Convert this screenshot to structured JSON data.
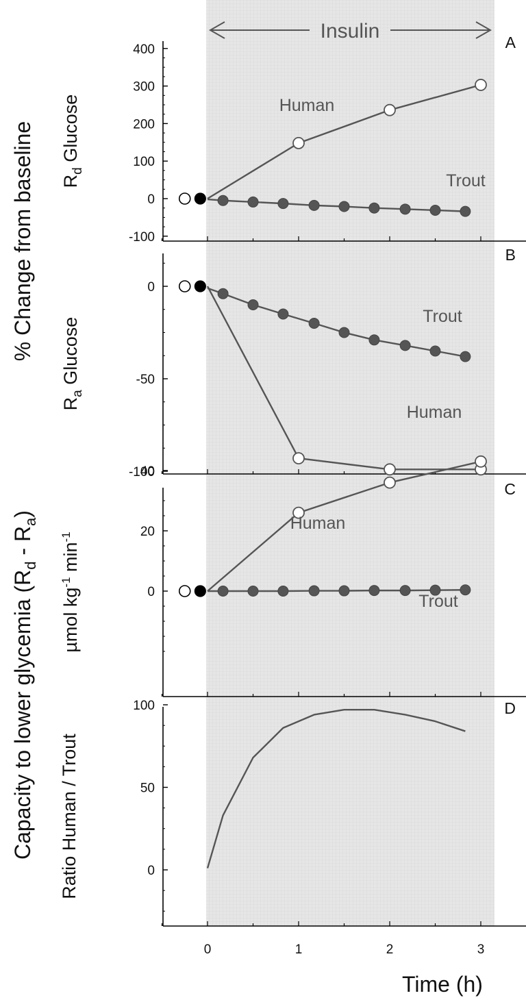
{
  "figure": {
    "insulin_label": "Insulin",
    "left_title": "% Change from baseline",
    "left_title_bottom": "Capacity to lower glycemia (R",
    "x_title": "Time (h)",
    "x_ticks": [
      0,
      1,
      2,
      3
    ],
    "colors": {
      "shade": "#e3e3e3",
      "line": "#555555",
      "trout_marker": "#555555",
      "baseline_filled": "#000000"
    }
  },
  "chart_data": [
    {
      "panel": "A",
      "type": "line",
      "ylabel": "Rd Glucose",
      "ylim": [
        -120,
        420
      ],
      "yticks": [
        -100,
        0,
        100,
        200,
        300,
        400
      ],
      "baseline": {
        "human": [
          -0.25,
          0
        ],
        "trout": [
          -0.08,
          0
        ]
      },
      "series": [
        {
          "name": "Human",
          "x": [
            0,
            1,
            2,
            3
          ],
          "y": [
            0,
            148,
            236,
            303
          ]
        },
        {
          "name": "Trout",
          "x": [
            0,
            0.17,
            0.5,
            0.83,
            1.17,
            1.5,
            1.83,
            2.17,
            2.5,
            2.83
          ],
          "y": [
            -2,
            -5,
            -9,
            -13,
            -18,
            -21,
            -25,
            -28,
            -31,
            -34
          ]
        }
      ]
    },
    {
      "panel": "B",
      "type": "line",
      "ylabel": "Ra Glucose",
      "ylim": [
        -127,
        22
      ],
      "yticks": [
        -100,
        -50,
        0
      ],
      "baseline": {
        "human": [
          -0.25,
          0
        ],
        "trout": [
          -0.08,
          0
        ]
      },
      "series": [
        {
          "name": "Human",
          "x": [
            0,
            1,
            2,
            3
          ],
          "y": [
            0,
            -93,
            -99,
            -99
          ]
        },
        {
          "name": "Trout",
          "x": [
            0,
            0.17,
            0.5,
            0.83,
            1.17,
            1.5,
            1.83,
            2.17,
            2.5,
            2.83
          ],
          "y": [
            -1,
            -4,
            -10,
            -15,
            -20,
            -25,
            -29,
            -32,
            -35,
            -38
          ]
        }
      ]
    },
    {
      "panel": "C",
      "type": "line",
      "ylabel": "µmol kg-1 min-1",
      "ylim": [
        -13,
        55
      ],
      "yticks": [
        0,
        20,
        40
      ],
      "baseline": {
        "human": [
          -0.25,
          0
        ],
        "trout": [
          -0.08,
          0
        ]
      },
      "series": [
        {
          "name": "Human",
          "x": [
            0,
            1,
            2,
            3
          ],
          "y": [
            0,
            26,
            36,
            43
          ]
        },
        {
          "name": "Trout",
          "x": [
            0,
            0.17,
            0.5,
            0.83,
            1.17,
            1.5,
            1.83,
            2.17,
            2.5,
            2.83
          ],
          "y": [
            0,
            0,
            0,
            0,
            0.1,
            0.1,
            0.2,
            0.2,
            0.3,
            0.4
          ]
        }
      ]
    },
    {
      "panel": "D",
      "type": "line",
      "ylabel": "Ratio Human / Trout",
      "ylim": [
        -20,
        130
      ],
      "yticks": [
        0,
        50,
        100
      ],
      "series": [
        {
          "x": [
            0,
            0.17,
            0.5,
            0.83,
            1.17,
            1.5,
            1.83,
            2.17,
            2.5,
            2.83
          ],
          "y": [
            1,
            33,
            68,
            86,
            94,
            97,
            97,
            94,
            90,
            84
          ]
        }
      ]
    }
  ]
}
